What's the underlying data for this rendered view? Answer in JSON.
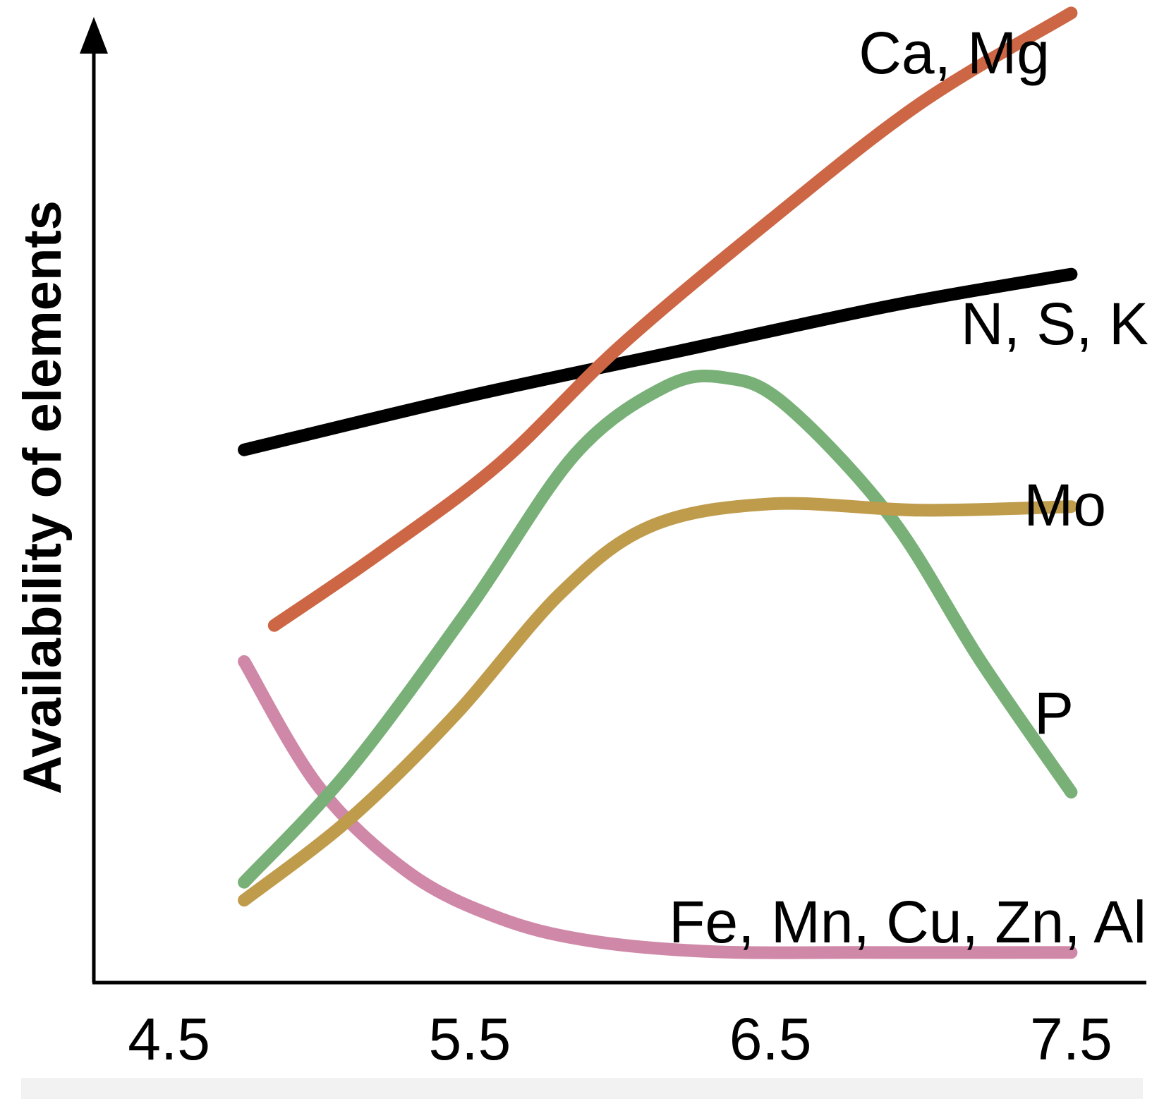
{
  "chart_data": {
    "type": "line",
    "title": "",
    "xlabel": "",
    "ylabel": "Availability of elements",
    "x_ticks": [
      "4.5",
      "5.5",
      "6.5",
      "7.5"
    ],
    "xlim": [
      4.25,
      7.75
    ],
    "ylim": [
      0,
      10
    ],
    "grid": false,
    "series": [
      {
        "name": "Ca, Mg",
        "color": "#cc6644",
        "points": [
          [
            4.85,
            3.8
          ],
          [
            5.2,
            4.6
          ],
          [
            5.6,
            5.6
          ],
          [
            6.0,
            6.9
          ],
          [
            6.5,
            8.3
          ],
          [
            7.0,
            9.6
          ],
          [
            7.5,
            10.6
          ]
        ]
      },
      {
        "name": "N, S, K",
        "color": "#000000",
        "points": [
          [
            4.75,
            5.75
          ],
          [
            5.5,
            6.35
          ],
          [
            6.2,
            6.85
          ],
          [
            6.9,
            7.35
          ],
          [
            7.5,
            7.7
          ]
        ]
      },
      {
        "name": "Mo",
        "color": "#bf9c4c",
        "points": [
          [
            4.75,
            0.75
          ],
          [
            5.1,
            1.65
          ],
          [
            5.45,
            2.8
          ],
          [
            5.8,
            4.15
          ],
          [
            6.1,
            4.9
          ],
          [
            6.5,
            5.15
          ],
          [
            7.0,
            5.08
          ],
          [
            7.5,
            5.12
          ]
        ]
      },
      {
        "name": "P",
        "color": "#78b078",
        "points": [
          [
            4.75,
            0.95
          ],
          [
            5.1,
            2.2
          ],
          [
            5.5,
            4.0
          ],
          [
            5.85,
            5.7
          ],
          [
            6.15,
            6.45
          ],
          [
            6.35,
            6.55
          ],
          [
            6.55,
            6.25
          ],
          [
            6.9,
            5.0
          ],
          [
            7.2,
            3.4
          ],
          [
            7.5,
            1.95
          ]
        ]
      },
      {
        "name": "Fe, Mn, Cu, Zn, Al",
        "color": "#d088a8",
        "points": [
          [
            4.75,
            3.4
          ],
          [
            5.0,
            2.0
          ],
          [
            5.3,
            1.05
          ],
          [
            5.6,
            0.55
          ],
          [
            5.9,
            0.3
          ],
          [
            6.3,
            0.18
          ],
          [
            6.8,
            0.17
          ],
          [
            7.5,
            0.17
          ]
        ]
      }
    ],
    "annotations": [
      {
        "text": "Ca, Mg",
        "series": "Ca, Mg"
      },
      {
        "text": "N, S, K",
        "series": "N, S, K"
      },
      {
        "text": "Mo",
        "series": "Mo"
      },
      {
        "text": "P",
        "series": "P"
      },
      {
        "text": "Fe, Mn, Cu, Zn, Al",
        "series": "Fe, Mn, Cu, Zn, Al"
      }
    ]
  }
}
